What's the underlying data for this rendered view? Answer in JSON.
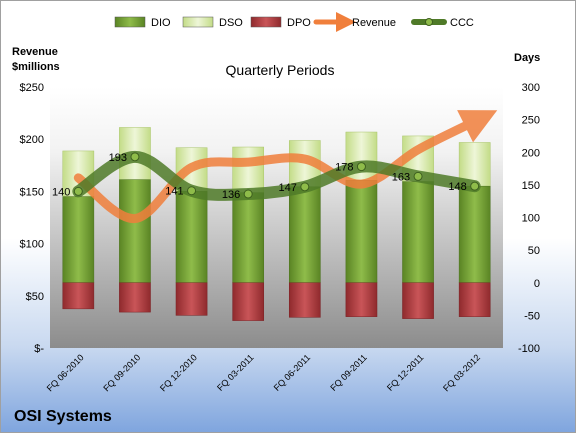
{
  "chart_data": {
    "type": "bar",
    "subtitle": "Quarterly Periods",
    "company": "OSI Systems",
    "left_axis": {
      "title_lines": [
        "Revenue",
        "$millions"
      ],
      "range": [
        0,
        250
      ],
      "ticks": [
        0,
        50,
        100,
        150,
        200,
        250
      ],
      "tick_labels": [
        "$-",
        "$50",
        "$100",
        "$150",
        "$200",
        "$250"
      ]
    },
    "right_axis": {
      "title": "Days",
      "range": [
        -100,
        300
      ],
      "ticks": [
        -100,
        -50,
        0,
        50,
        100,
        150,
        200,
        250,
        300
      ],
      "tick_labels": [
        "-100",
        "-50",
        "0",
        "50",
        "100",
        "150",
        "200",
        "250",
        "300"
      ]
    },
    "categories": [
      "FQ 06-2010",
      "FQ 09-2010",
      "FQ 12-2010",
      "FQ 03-2011",
      "FQ 06-2011",
      "FQ 09-2011",
      "FQ 12-2011",
      "FQ 03-2012"
    ],
    "series": [
      {
        "name": "DIO",
        "type": "bar",
        "axis": "right",
        "color": "#6e9b2f",
        "values": [
          132,
          158,
          140,
          138,
          147,
          157,
          155,
          148
        ]
      },
      {
        "name": "DSO",
        "type": "bar",
        "axis": "right",
        "color": "#d6e9a8",
        "values": [
          70,
          80,
          67,
          70,
          71,
          74,
          70,
          67
        ]
      },
      {
        "name": "DPO",
        "type": "bar",
        "axis": "right",
        "color": "#b33b3e",
        "values": [
          -40,
          -45,
          -50,
          -58,
          -53,
          -52,
          -55,
          -52
        ]
      },
      {
        "name": "Revenue",
        "type": "line",
        "axis": "left",
        "color": "#f07f3c",
        "values": [
          163,
          124,
          173,
          178,
          181,
          157,
          190,
          217
        ]
      },
      {
        "name": "CCC",
        "type": "line",
        "axis": "right",
        "color": "#4f7a28",
        "values": [
          140,
          193,
          141,
          136,
          147,
          178,
          163,
          148
        ],
        "labels": [
          "140",
          "193",
          "141",
          "136",
          "147",
          "178",
          "163",
          "148"
        ]
      }
    ],
    "legend": {
      "position": "top",
      "entries": [
        "DIO",
        "DSO",
        "DPO",
        "Revenue",
        "CCC"
      ]
    },
    "grid": false
  }
}
